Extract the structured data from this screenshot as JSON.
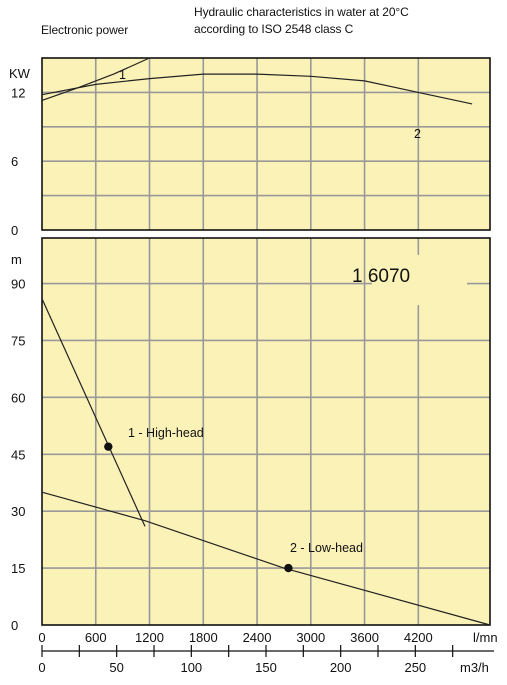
{
  "header": {
    "left_title": "Electronic power",
    "right_title_line1": "Hydraulic characteristics in water at 20°C",
    "right_title_line2": "according to ISO 2548 class C"
  },
  "colors": {
    "panel_bg": "#fbf2b8",
    "grid": "#999999",
    "frame": "#111111",
    "curve": "#222222"
  },
  "chart_data": [
    {
      "type": "line",
      "panel": "power",
      "ylabel": "KW",
      "ylim": [
        0,
        15
      ],
      "yticks": [
        "0",
        "6",
        "12"
      ],
      "ytick_values": [
        0,
        6,
        12
      ],
      "xlim": [
        0,
        5000
      ],
      "series": [
        {
          "name": "1",
          "x": [
            0,
            400,
            800,
            1200
          ],
          "y": [
            11.3,
            12.4,
            13.6,
            15.0
          ]
        },
        {
          "name": "2",
          "x": [
            0,
            600,
            1200,
            1800,
            2400,
            3000,
            3600,
            4200,
            4800
          ],
          "y": [
            11.8,
            12.7,
            13.2,
            13.6,
            13.6,
            13.4,
            13.0,
            12.0,
            11.0
          ]
        }
      ],
      "annotations": [
        "1",
        "2"
      ],
      "grid": true
    },
    {
      "type": "line",
      "panel": "head",
      "model_label": "1 6070",
      "ylabel": "m",
      "ylim": [
        0,
        102
      ],
      "yticks": [
        "0",
        "15",
        "30",
        "45",
        "60",
        "75",
        "90"
      ],
      "ytick_values": [
        0,
        15,
        30,
        45,
        60,
        75,
        90
      ],
      "xlabel": "l/mn",
      "xlim": [
        0,
        5000
      ],
      "xticks": [
        "0",
        "600",
        "1200",
        "1800",
        "2400",
        "3000",
        "3600",
        "4200"
      ],
      "xtick_values": [
        0,
        600,
        1200,
        1800,
        2400,
        3000,
        3600,
        4200
      ],
      "x2label": "m3/h",
      "x2ticks": [
        "0",
        "50",
        "100",
        "150",
        "200",
        "250"
      ],
      "x2tick_values": [
        0,
        50,
        100,
        150,
        200,
        250
      ],
      "series": [
        {
          "name": "1 - High-head",
          "x": [
            0,
            1150
          ],
          "y": [
            86,
            26
          ]
        },
        {
          "name": "2 - Low-head",
          "x": [
            0,
            1150,
            2700,
            5000
          ],
          "y": [
            35,
            27.5,
            15,
            0
          ]
        }
      ],
      "points": [
        {
          "label": "1 - High-head",
          "x": 740,
          "y": 47
        },
        {
          "label": "2 - Low-head",
          "x": 2750,
          "y": 15
        }
      ],
      "grid": true
    }
  ]
}
